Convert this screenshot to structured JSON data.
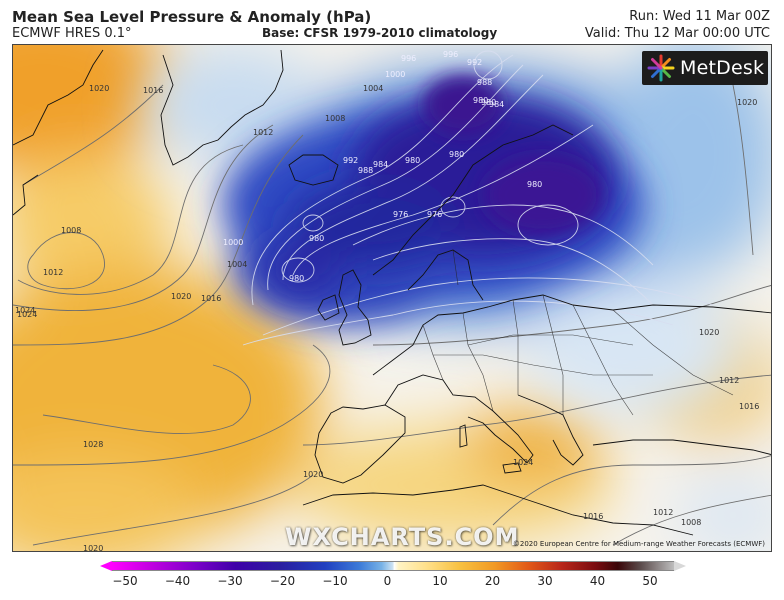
{
  "header": {
    "title": "Mean Sea Level Pressure & Anomaly (hPa)",
    "model": "ECMWF HRES 0.1°",
    "base": "Base: CFSR 1979-2010 climatology",
    "run": "Run: Wed 11 Mar 00Z",
    "valid": "Valid: Thu 12 Mar 00:00 UTC"
  },
  "logo": {
    "text": "MetDesk",
    "icon": "metdesk-starburst-icon"
  },
  "watermark": "WXCHARTS.COM",
  "copyright": "©2020 European Centre for Medium-range Weather Forecasts (ECMWF)",
  "isobar_labels": [
    "1020",
    "1016",
    "1012",
    "1008",
    "1004",
    "1000",
    "996",
    "992",
    "988",
    "984",
    "980",
    "976",
    "1008",
    "1012",
    "1016",
    "1020",
    "1024",
    "1028",
    "1024",
    "1020",
    "1016",
    "1012",
    "1008",
    "1020",
    "1020",
    "1012",
    "1016",
    "1004",
    "1000",
    "996",
    "992",
    "988",
    "984",
    "980",
    "980",
    "980",
    "980",
    "980",
    "976",
    "980",
    "1020",
    "1024"
  ],
  "colorbar": {
    "ticks": [
      "−50",
      "−40",
      "−30",
      "−20",
      "−10",
      "0",
      "10",
      "20",
      "30",
      "40",
      "50"
    ]
  },
  "colors": {
    "low_core": "#2a1a90",
    "high_core": "#eaa42a",
    "neutral": "#ffffff"
  }
}
